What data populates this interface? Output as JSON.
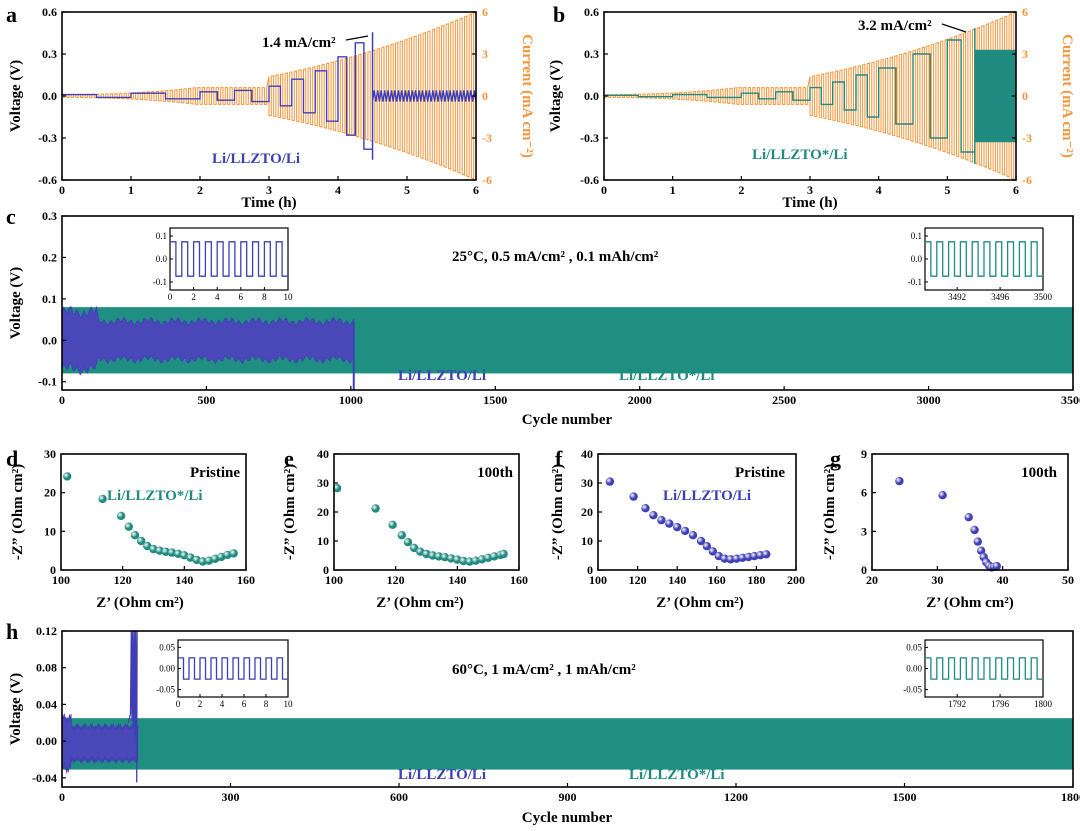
{
  "colors": {
    "blue": "#3f3fb5",
    "teal": "#1f8a7f",
    "orange": "#f5953a",
    "blue_fill": "#4a47b8",
    "teal_fill": "#1f8f82"
  },
  "chart_data": [
    {
      "id": "a",
      "panel_label": "a",
      "type": "line",
      "xlabel": "Time (h)",
      "ylabel": "Voltage (V)",
      "y2label": "Current (mA cm⁻²)",
      "xlim": [
        0,
        6
      ],
      "ylim": [
        -0.6,
        0.6
      ],
      "y2lim": [
        -6,
        6
      ],
      "xticks": [
        "0",
        "1",
        "2",
        "3",
        "4",
        "5",
        "6"
      ],
      "yticks": [
        "-0.6",
        "-0.3",
        "0.0",
        "0.3",
        "0.6"
      ],
      "y2ticks": [
        "-6",
        "-3",
        "0",
        "3",
        "6"
      ],
      "annotation": "1.4 mA/cm²",
      "legend": "Li/LLZTO/Li",
      "series": [
        {
          "name": "Li/LLZTO/Li voltage",
          "axis": "left",
          "color": "blue",
          "step_hours": [
            0,
            1,
            2,
            2.5,
            3,
            3.33,
            3.67,
            4,
            4.25,
            4.5
          ],
          "amplitude_V": [
            0.01,
            0.02,
            0.03,
            0.04,
            0.07,
            0.12,
            0.18,
            0.28,
            0.38,
            0.45
          ],
          "after_hour": 4.5,
          "after_amplitude_V": 0.04
        },
        {
          "name": "Current",
          "axis": "right",
          "color": "orange",
          "ramp_start_h": 0,
          "ramp_end_h": 6,
          "start_mA": 0.1,
          "end_mA": 6
        }
      ]
    },
    {
      "id": "b",
      "panel_label": "b",
      "type": "line",
      "xlabel": "Time (h)",
      "ylabel": "Voltage (V)",
      "y2label": "Current (mA cm⁻²)",
      "xlim": [
        0,
        6
      ],
      "ylim": [
        -0.6,
        0.6
      ],
      "y2lim": [
        -6,
        6
      ],
      "xticks": [
        "0",
        "1",
        "2",
        "3",
        "4",
        "5",
        "6"
      ],
      "yticks": [
        "-0.6",
        "-0.3",
        "0.0",
        "0.3",
        "0.6"
      ],
      "y2ticks": [
        "-6",
        "-3",
        "0",
        "3",
        "6"
      ],
      "annotation": "3.2 mA/cm²",
      "legend": "Li/LLZTO*/Li",
      "series": [
        {
          "name": "Li/LLZTO*/Li voltage",
          "axis": "left",
          "color": "teal",
          "step_hours": [
            0,
            1,
            2,
            2.5,
            3,
            3.33,
            3.67,
            4,
            4.5,
            5,
            5.4
          ],
          "amplitude_V": [
            0.005,
            0.01,
            0.02,
            0.03,
            0.06,
            0.1,
            0.15,
            0.2,
            0.3,
            0.4,
            0.48
          ],
          "after_hour": 5.4,
          "after_amplitude_V": 0.33
        },
        {
          "name": "Current",
          "axis": "right",
          "color": "orange",
          "ramp_start_h": 0,
          "ramp_end_h": 6,
          "start_mA": 0.1,
          "end_mA": 6
        }
      ]
    },
    {
      "id": "c",
      "panel_label": "c",
      "type": "line",
      "xlabel": "Cycle number",
      "ylabel": "Voltage (V)",
      "xlim": [
        0,
        3500
      ],
      "ylim": [
        -0.12,
        0.3
      ],
      "xticks": [
        "0",
        "500",
        "1000",
        "1500",
        "2000",
        "2500",
        "3000",
        "3500"
      ],
      "yticks": [
        "-0.1",
        "0.0",
        "0.1",
        "0.2",
        "0.3"
      ],
      "condition": "25°C, 0.5 mA/cm² , 0.1 mAh/cm²",
      "legend_blue": "Li/LLZTO/Li",
      "legend_teal": "Li/LLZTO*/Li",
      "series": [
        {
          "name": "Li/LLZTO*/Li",
          "color": "teal",
          "x_range": [
            0,
            3500
          ],
          "band_V": [
            -0.08,
            0.08
          ]
        },
        {
          "name": "Li/LLZTO/Li",
          "color": "blue",
          "x_range": [
            0,
            1010
          ],
          "band_V": [
            -0.07,
            0.07
          ],
          "failure_cycle": 1010
        }
      ],
      "insets": [
        {
          "xticks": [
            "0",
            "2",
            "4",
            "6",
            "8",
            "10"
          ],
          "yticks": [
            "0.1",
            "0.0",
            "-0.1"
          ],
          "color": "blue",
          "xlim": [
            0,
            10
          ],
          "amplitude_V": 0.075
        },
        {
          "xticks": [
            "3492",
            "3496",
            "3500"
          ],
          "yticks": [
            "0.1",
            "0.0",
            "-0.1"
          ],
          "color": "teal",
          "xlim": [
            3489,
            3500
          ],
          "amplitude_V": 0.075
        }
      ]
    },
    {
      "id": "d",
      "panel_label": "d",
      "type": "scatter",
      "xlabel": "Z’ (Ohm cm²)",
      "ylabel": "-Z” (Ohm cm²)",
      "xlim": [
        100,
        160
      ],
      "ylim": [
        0,
        30
      ],
      "xticks": [
        "100",
        "120",
        "140",
        "160"
      ],
      "yticks": [
        "0",
        "10",
        "20",
        "30"
      ],
      "title": "Pristine",
      "legend": "Li/LLZTO*/Li",
      "color": "teal",
      "x": [
        102,
        113.5,
        119.5,
        122,
        124,
        126,
        128,
        130,
        132,
        134,
        136,
        138,
        140,
        142,
        144,
        146,
        148,
        150,
        152,
        154,
        156
      ],
      "y": [
        24.2,
        18.4,
        14,
        11.2,
        9,
        7.5,
        6.2,
        5.4,
        5.0,
        4.7,
        4.5,
        4.2,
        3.8,
        3.2,
        2.6,
        2.2,
        2.4,
        2.9,
        3.4,
        3.9,
        4.3
      ]
    },
    {
      "id": "e",
      "panel_label": "e",
      "type": "scatter",
      "xlabel": "Z’ (Ohm cm²)",
      "ylabel": "-Z” (Ohm cm²)",
      "xlim": [
        100,
        160
      ],
      "ylim": [
        0,
        40
      ],
      "xticks": [
        "100",
        "120",
        "140",
        "160"
      ],
      "yticks": [
        "0",
        "10",
        "20",
        "30",
        "40"
      ],
      "title": "100th",
      "color": "teal",
      "x": [
        101,
        113.5,
        119,
        122,
        124,
        126,
        128,
        130,
        132,
        134,
        136,
        138,
        140,
        142,
        144,
        146,
        148,
        150,
        152,
        154,
        155
      ],
      "y": [
        28.2,
        21.2,
        15.6,
        12,
        9.6,
        7.6,
        6.3,
        5.5,
        5.0,
        4.7,
        4.4,
        4.0,
        3.6,
        3.1,
        2.9,
        3.2,
        3.7,
        4.2,
        4.7,
        5.2,
        5.5
      ]
    },
    {
      "id": "f",
      "panel_label": "f",
      "type": "scatter",
      "xlabel": "Z’ (Ohm cm²)",
      "ylabel": "-Z” (Ohm cm²)",
      "xlim": [
        100,
        200
      ],
      "ylim": [
        0,
        40
      ],
      "xticks": [
        "100",
        "120",
        "140",
        "160",
        "180",
        "200"
      ],
      "yticks": [
        "0",
        "10",
        "20",
        "30",
        "40"
      ],
      "title": "Pristine",
      "legend": "Li/LLZTO/Li",
      "color": "blue",
      "x": [
        106,
        118,
        124,
        128,
        132,
        136,
        140,
        144,
        148,
        152,
        155,
        158,
        161,
        164,
        167,
        170,
        173,
        176,
        179,
        182,
        185
      ],
      "y": [
        30.5,
        25.3,
        21.3,
        18.9,
        17.2,
        16,
        14.8,
        13.5,
        12,
        10,
        8.2,
        6.4,
        4.8,
        3.9,
        3.7,
        3.9,
        4.2,
        4.5,
        4.8,
        5.1,
        5.4
      ]
    },
    {
      "id": "g",
      "panel_label": "g",
      "type": "scatter",
      "xlabel": "Z’ (Ohm cm²)",
      "ylabel": "-Z” (Ohm cm²)",
      "xlim": [
        20,
        50
      ],
      "ylim": [
        0,
        9
      ],
      "xticks": [
        "20",
        "30",
        "40",
        "50"
      ],
      "yticks": [
        "0",
        "3",
        "6",
        "9"
      ],
      "title": "100th",
      "color": "blue",
      "x": [
        24.2,
        30.8,
        34.8,
        35.7,
        36.2,
        36.7,
        37.1,
        37.5,
        37.9,
        38.3,
        38.7,
        39.1
      ],
      "y": [
        6.9,
        5.8,
        4.1,
        3.1,
        2.2,
        1.5,
        1.0,
        0.6,
        0.35,
        0.2,
        0.25,
        0.3
      ]
    },
    {
      "id": "h",
      "panel_label": "h",
      "type": "line",
      "xlabel": "Cycle number",
      "ylabel": "Voltage (V)",
      "xlim": [
        0,
        1800
      ],
      "ylim": [
        -0.05,
        0.12
      ],
      "xticks": [
        "0",
        "300",
        "600",
        "900",
        "1200",
        "1500",
        "1800"
      ],
      "yticks": [
        "-0.04",
        "0.00",
        "0.04",
        "0.08",
        "0.12"
      ],
      "condition": "60°C, 1 mA/cm² , 1 mAh/cm²",
      "legend_blue": "Li/LLZTO/Li",
      "legend_teal": "Li/LLZTO*/Li",
      "series": [
        {
          "name": "Li/LLZTO*/Li",
          "color": "teal",
          "x_range": [
            0,
            1800
          ],
          "band_V": [
            -0.031,
            0.025
          ]
        },
        {
          "name": "Li/LLZTO/Li",
          "color": "blue",
          "x_range": [
            0,
            135
          ],
          "band_V": [
            -0.03,
            0.025
          ],
          "failure_cycle": 130
        }
      ],
      "insets": [
        {
          "xticks": [
            "0",
            "2",
            "4",
            "6",
            "8",
            "10"
          ],
          "yticks": [
            "0.05",
            "0.00",
            "-0.05"
          ],
          "color": "blue",
          "xlim": [
            0,
            10
          ],
          "amplitude_V": 0.025
        },
        {
          "xticks": [
            "1792",
            "1796",
            "1800"
          ],
          "yticks": [
            "0.05",
            "0.00",
            "-0.05"
          ],
          "color": "teal",
          "xlim": [
            1789,
            1800
          ],
          "amplitude_V": 0.025
        }
      ]
    }
  ]
}
